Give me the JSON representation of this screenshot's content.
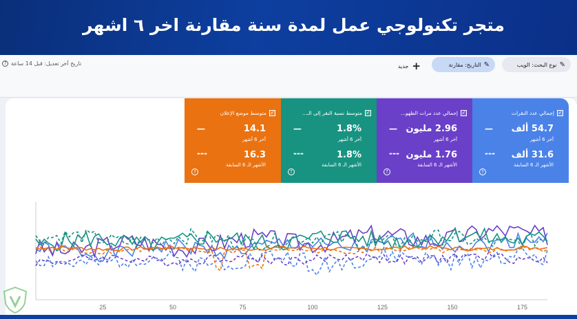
{
  "banner": {
    "title": "متجر تكنولوجي عمل لمدة سنة مقارنة اخر ٦ اشهر"
  },
  "toolbar": {
    "search_type": "نوع البحث: الويب",
    "date": "التاريخ: مقارنة",
    "new": "جديد",
    "last_edit": "تاريخ آخر تعديل: قبل 14 ساعة"
  },
  "cards": [
    {
      "title": "إجمالي عدد النقرات",
      "current": "54.7 ألف",
      "current_label": "آخر 6 أشهر",
      "previous": "31.6 ألف",
      "previous_label": "الأشهر الـ 6 السابقة",
      "dash1": "—",
      "dash2": "---",
      "color": "#4a82e8"
    },
    {
      "title": "إجمالي عدد مرات الظهو...",
      "current": "2.96 مليون",
      "current_label": "آخر 6 أشهر",
      "previous": "1.76 مليون",
      "previous_label": "الأشهر الـ 6 السابقة",
      "dash1": "—",
      "dash2": "---",
      "color": "#6a40c8"
    },
    {
      "title": "متوسط نسبة النقر إلى الـ...",
      "current": "1.8%",
      "current_label": "آخر 6 أشهر",
      "previous": "1.8%",
      "previous_label": "الأشهر الـ 6 السابقة",
      "dash1": "—",
      "dash2": "---",
      "color": "#189381"
    },
    {
      "title": "متوسط موضع الإعلان",
      "current": "14.1",
      "current_label": "آخر 6 أشهر",
      "previous": "16.3",
      "previous_label": "الأشهر الـ 6 السابقة",
      "dash1": "—",
      "dash2": "---",
      "color": "#ea7211"
    }
  ],
  "chart_data": {
    "type": "line",
    "x_ticks": [
      "25",
      "50",
      "75",
      "100",
      "125",
      "150",
      "175"
    ],
    "xlim": [
      1,
      184
    ],
    "ylim": [
      0,
      100
    ],
    "series": [
      {
        "key": "clicks",
        "color": "#4a82e8",
        "style": "solid",
        "base": 48,
        "trend": 12,
        "noise": 8,
        "seed": 1
      },
      {
        "key": "clicks_prev",
        "color": "#4a82e8",
        "style": "dashed",
        "base": 38,
        "trend": 4,
        "noise": 9,
        "seed": 2
      },
      {
        "key": "impressions",
        "color": "#6a40c8",
        "style": "solid",
        "base": 52,
        "trend": 16,
        "noise": 10,
        "seed": 3
      },
      {
        "key": "impressions_prev",
        "color": "#6a40c8",
        "style": "dashed",
        "base": 40,
        "trend": 2,
        "noise": 5,
        "seed": 4
      },
      {
        "key": "ctr",
        "color": "#189381",
        "style": "solid",
        "base": 58,
        "trend": 6,
        "noise": 9,
        "seed": 5
      },
      {
        "key": "ctr_prev",
        "color": "#189381",
        "style": "dashed",
        "base": 62,
        "trend": -2,
        "noise": 8,
        "seed": 6
      },
      {
        "key": "position",
        "color": "#ea7211",
        "style": "solid",
        "base": 52,
        "trend": 0,
        "noise": 2,
        "seed": 7
      },
      {
        "key": "position_prev",
        "color": "#ea7211",
        "style": "dashed",
        "base": 50,
        "trend": 0,
        "noise": 3,
        "seed": 8
      }
    ]
  }
}
